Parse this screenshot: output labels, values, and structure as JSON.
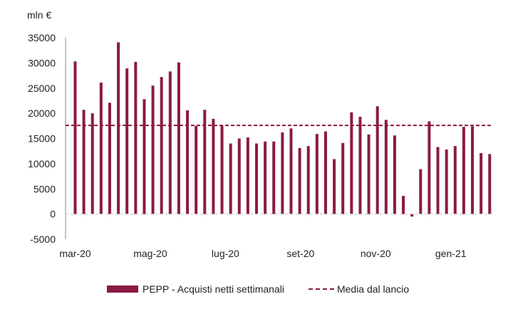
{
  "chart_data": {
    "type": "bar",
    "unit_label": "mln €",
    "ylim": [
      -5000,
      35000
    ],
    "yticks": [
      -5000,
      0,
      5000,
      10000,
      15000,
      20000,
      25000,
      30000,
      35000
    ],
    "xtick_labels": [
      "mar-20",
      "mag-20",
      "lug-20",
      "set-20",
      "nov-20",
      "gen-21"
    ],
    "series": [
      {
        "name": "PEPP - Acquisti netti settimanali",
        "color": "#8b1a45",
        "values": [
          30300,
          20700,
          20000,
          26100,
          22100,
          34100,
          28900,
          30200,
          22800,
          25500,
          27200,
          28300,
          30100,
          20600,
          17500,
          20700,
          18900,
          17500,
          14000,
          15000,
          15200,
          14000,
          14400,
          14400,
          16200,
          17000,
          13100,
          13500,
          15900,
          16400,
          10900,
          14100,
          20200,
          19300,
          15800,
          21400,
          18700,
          15600,
          3600,
          -500,
          8900,
          18400,
          13300,
          12800,
          13500,
          17300,
          17400,
          12100,
          11900
        ]
      }
    ],
    "reference_line": {
      "name": "Media dal lancio",
      "value": 17600,
      "color": "#8b1a45",
      "style": "dashed"
    },
    "legend_position": "bottom",
    "grid": false
  }
}
